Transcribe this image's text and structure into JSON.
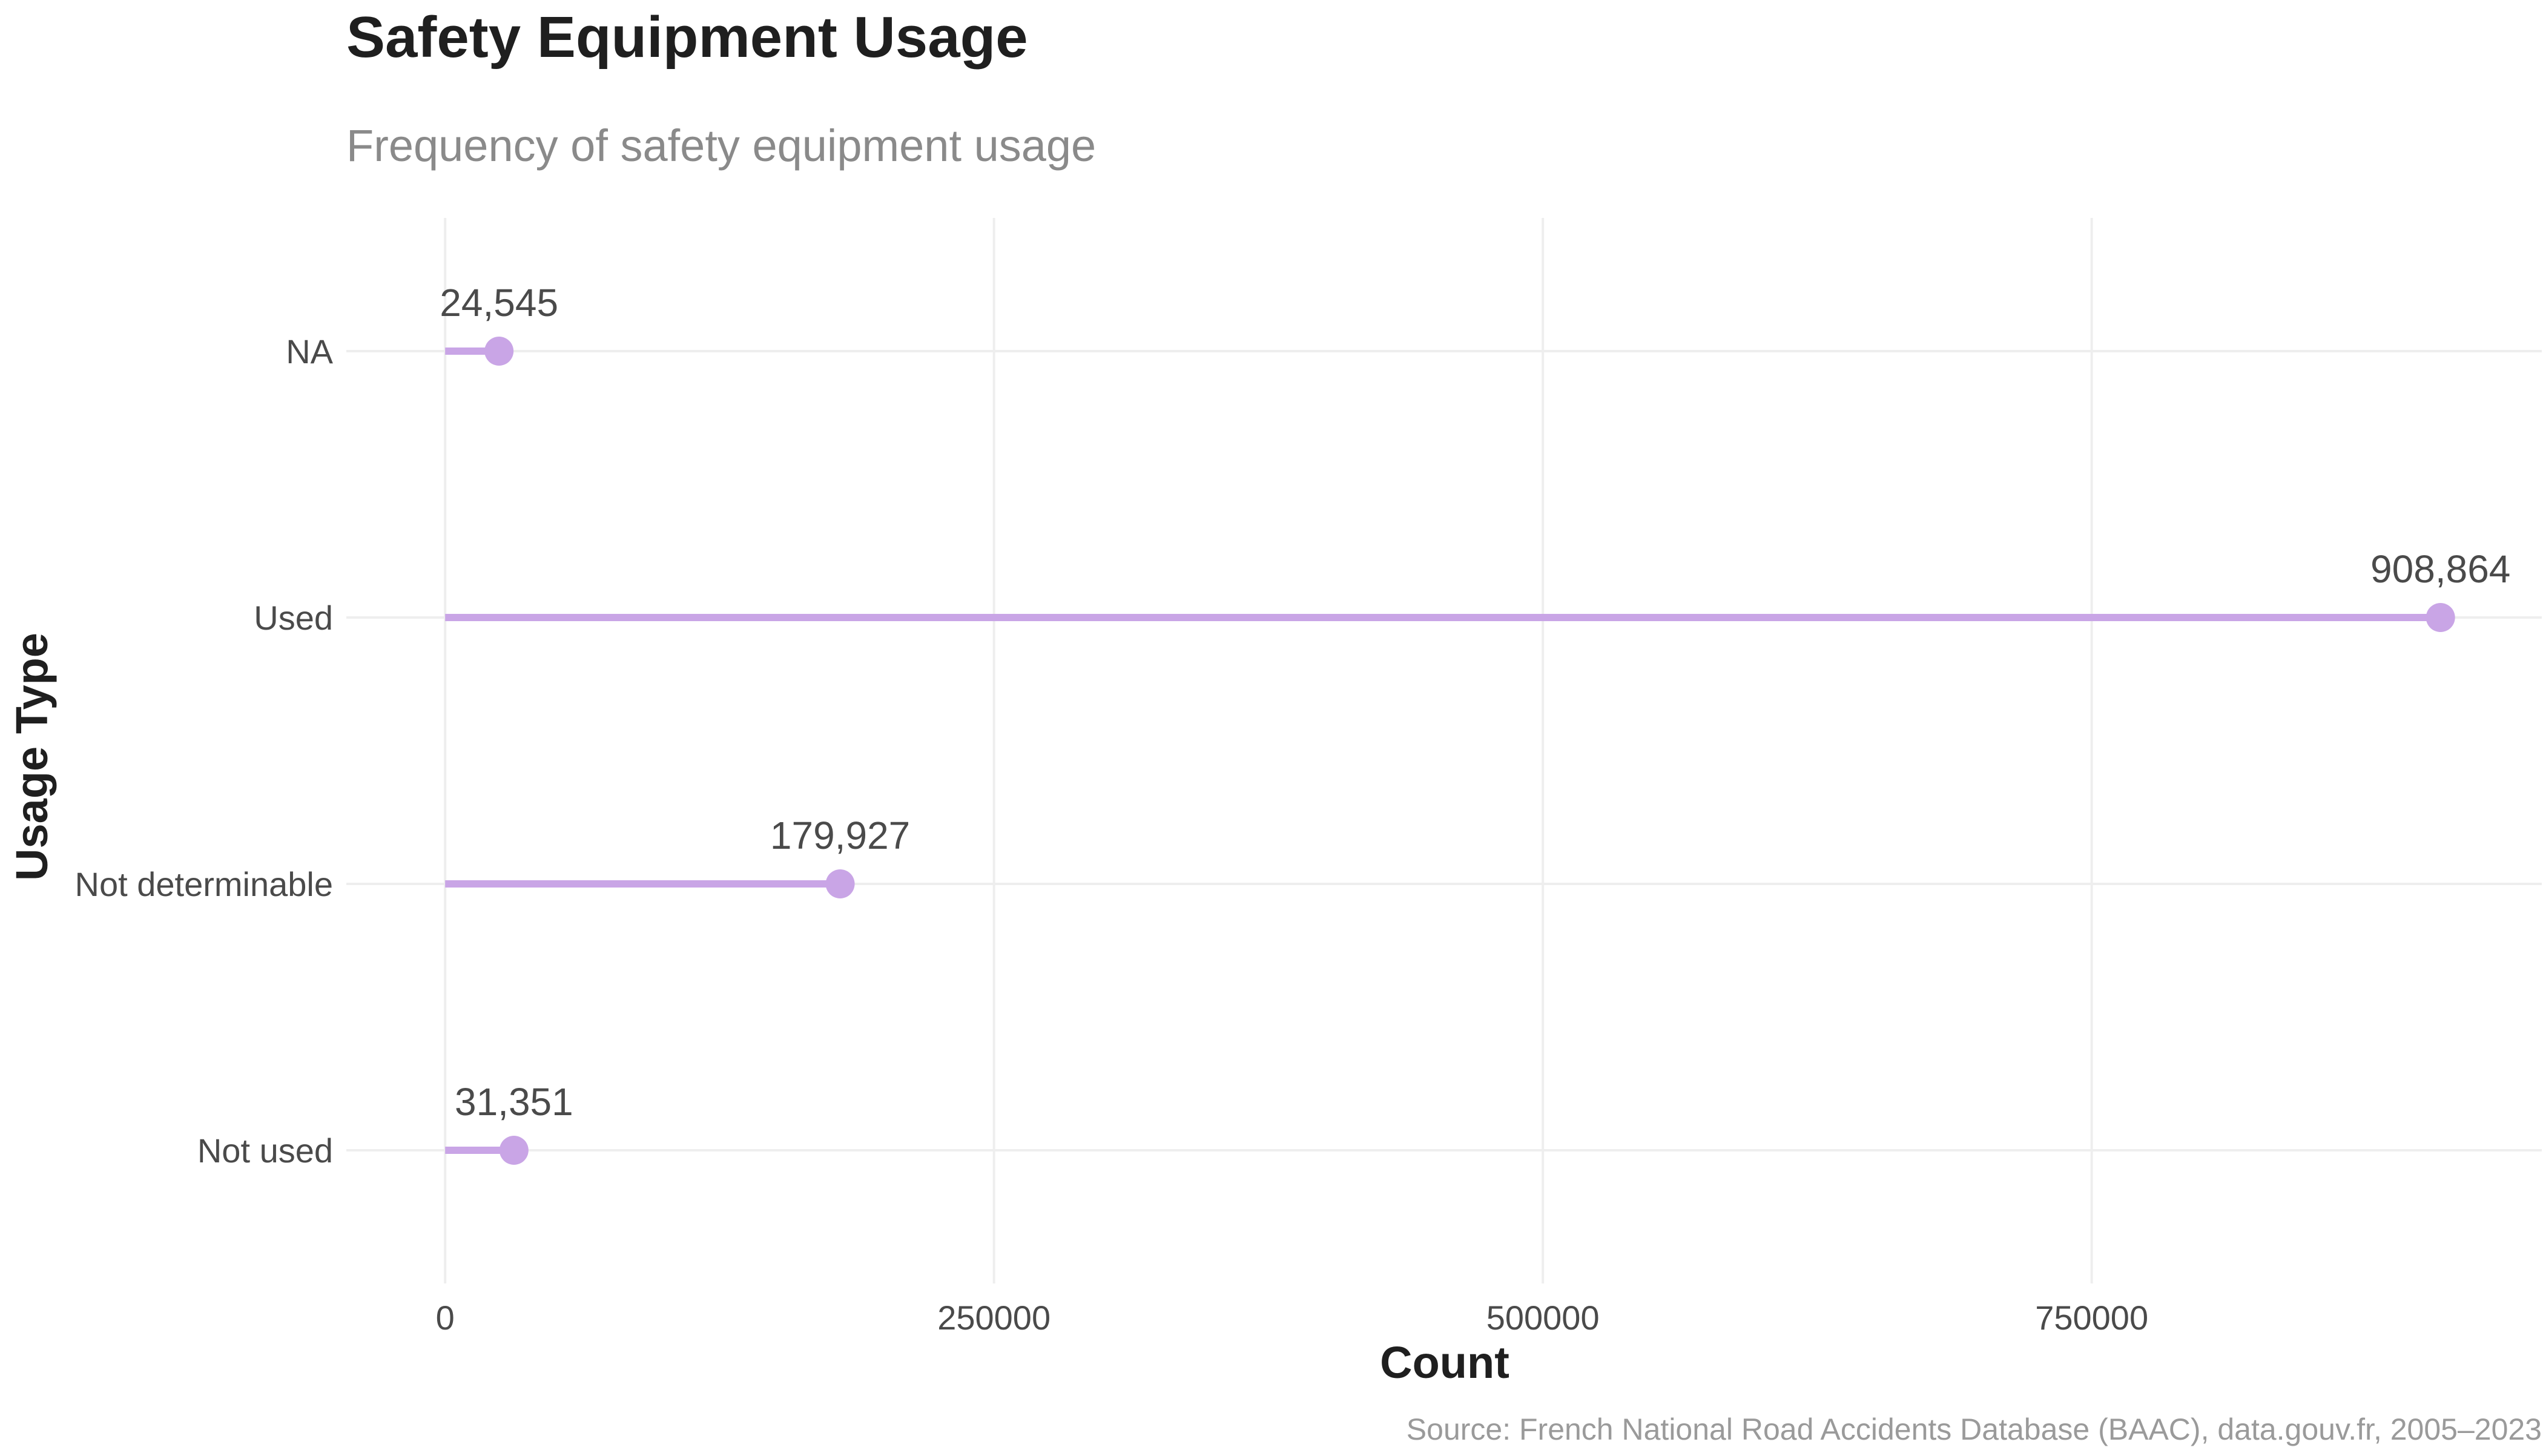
{
  "colors": {
    "accent": "#c9a5e6",
    "title": "#1f1f1f",
    "subtitle": "#8a8a8a",
    "axis_text": "#4a4a4a",
    "caption": "#9a9a9a",
    "grid": "#eeeeee"
  },
  "chart_data": {
    "type": "lollipop",
    "title": "Safety Equipment Usage",
    "subtitle": "Frequency of safety equipment usage",
    "xlabel": "Count",
    "ylabel": "Usage Type",
    "caption": "Source: French National Road Accidents Database (BAAC), data.gouv.fr, 2005–2023",
    "categories": [
      "NA",
      "Used",
      "Not determinable",
      "Not used"
    ],
    "values": [
      24545,
      908864,
      179927,
      31351
    ],
    "value_labels": [
      "24,545",
      "908,864",
      "179,927",
      "31,351"
    ],
    "xlim": [
      -45000,
      955000
    ],
    "xticks": [
      0,
      250000,
      500000,
      750000
    ],
    "xtick_labels": [
      "0",
      "250000",
      "500000",
      "750000"
    ],
    "grid": true,
    "legend": "none"
  }
}
